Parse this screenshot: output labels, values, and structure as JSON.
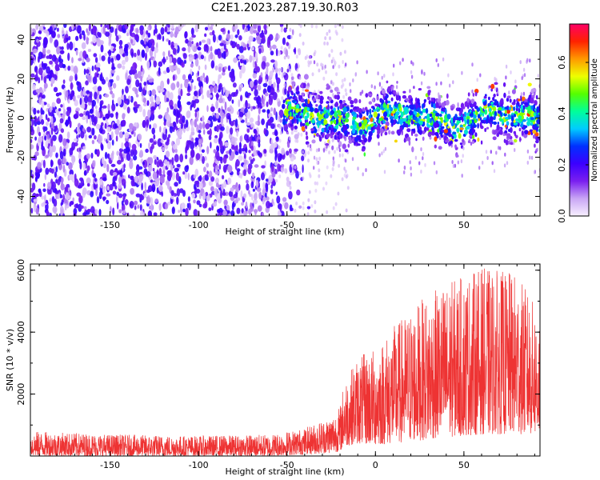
{
  "title": "C2E1.2023.287.19.30.R03",
  "chart_data": [
    {
      "type": "heatmap",
      "xlabel": "Height of straight line (km)",
      "ylabel": "Frequency (Hz)",
      "xlim": [
        -195,
        93
      ],
      "ylim": [
        -50,
        48
      ],
      "xticks": [
        -150,
        -100,
        -50,
        0,
        50
      ],
      "yticks": [
        -40,
        -20,
        0,
        20,
        40
      ],
      "tick_labels_x": [
        "-150",
        "-100",
        "-50",
        "0",
        "50"
      ],
      "tick_labels_y": [
        "-40",
        "-20",
        "0",
        "20",
        "40"
      ],
      "grid": false,
      "noise_region": {
        "x_from": -195,
        "x_to": -35,
        "y_from": -50,
        "y_to": 48,
        "typical_amplitude": 0.15
      },
      "signal_band": {
        "x_from": -52,
        "x_to": 93,
        "center_frequency": 0,
        "half_width": 12,
        "peak_amplitude": 0.75
      },
      "colorbar": {
        "label": "Normalized spectral amplitude",
        "range": [
          0.0,
          0.75
        ],
        "ticks": [
          0.0,
          0.2,
          0.4,
          0.6
        ],
        "tick_labels": [
          "0.0",
          "0.2",
          "0.4",
          "0.6"
        ],
        "colormap": [
          "#f8f0ff",
          "#c9a6f5",
          "#7a1ff0",
          "#3b00ff",
          "#0030ff",
          "#00ccff",
          "#00ff99",
          "#55ff00",
          "#eeff00",
          "#ff9900",
          "#ff2200",
          "#ff0066"
        ]
      }
    },
    {
      "type": "line",
      "xlabel": "Height of straight line (km)",
      "ylabel": "SNR (10 * v/v)",
      "xlim": [
        -195,
        93
      ],
      "ylim": [
        0,
        6200
      ],
      "xticks": [
        -150,
        -100,
        -50,
        0,
        50
      ],
      "yticks": [
        2000,
        4000,
        6000
      ],
      "tick_labels_x": [
        "-150",
        "-100",
        "-50",
        "0",
        "50"
      ],
      "tick_labels_y": [
        "2000",
        "4000",
        "6000"
      ],
      "color": "#ee3333",
      "grid": false,
      "envelope": [
        {
          "x": -195,
          "low": 0,
          "high": 800
        },
        {
          "x": -150,
          "low": 0,
          "high": 700
        },
        {
          "x": -100,
          "low": 0,
          "high": 650
        },
        {
          "x": -60,
          "low": 0,
          "high": 700
        },
        {
          "x": -40,
          "low": 50,
          "high": 900
        },
        {
          "x": -25,
          "low": 100,
          "high": 1300
        },
        {
          "x": -20,
          "low": 150,
          "high": 1600
        },
        {
          "x": -18,
          "low": 300,
          "high": 2400
        },
        {
          "x": -10,
          "low": 400,
          "high": 3200
        },
        {
          "x": 0,
          "low": 350,
          "high": 3500
        },
        {
          "x": 10,
          "low": 400,
          "high": 4200
        },
        {
          "x": 25,
          "low": 500,
          "high": 5000
        },
        {
          "x": 40,
          "low": 600,
          "high": 5600
        },
        {
          "x": 60,
          "low": 700,
          "high": 6100
        },
        {
          "x": 80,
          "low": 700,
          "high": 5900
        },
        {
          "x": 93,
          "low": 700,
          "high": 4600
        }
      ]
    }
  ]
}
